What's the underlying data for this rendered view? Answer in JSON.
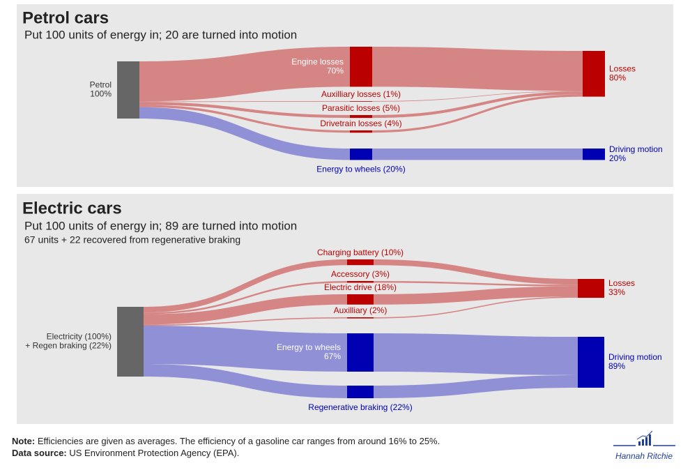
{
  "chart_data": [
    {
      "type": "sankey",
      "title": "Petrol cars",
      "subtitle": "Put 100 units of energy in; 20 are turned into motion",
      "nodes": [
        {
          "label": [
            "Petrol",
            "100%"
          ],
          "color": "#666666"
        },
        {
          "label": [
            "Engine losses",
            "70%"
          ],
          "color": "#bb0000"
        },
        {
          "label": [
            "Auxilliary losses (1%)"
          ],
          "color": "#bb0000"
        },
        {
          "label": [
            "Parasitic losses (5%)"
          ],
          "color": "#bb0000"
        },
        {
          "label": [
            "Drivetrain losses (4%)"
          ],
          "color": "#bb0000"
        },
        {
          "label": [
            "Energy to wheels (20%)"
          ],
          "color": "#0000b3"
        },
        {
          "label": [
            "Losses",
            "80%"
          ],
          "color": "#bb0000"
        },
        {
          "label": [
            "Driving motion",
            "20%"
          ],
          "color": "#0000b3"
        }
      ],
      "links": [
        {
          "source": 0,
          "target": 1,
          "value": 70,
          "color": "#d27373"
        },
        {
          "source": 0,
          "target": 2,
          "value": 1,
          "color": "#d27373"
        },
        {
          "source": 0,
          "target": 3,
          "value": 5,
          "color": "#d27373"
        },
        {
          "source": 0,
          "target": 4,
          "value": 4,
          "color": "#d27373"
        },
        {
          "source": 0,
          "target": 5,
          "value": 20,
          "color": "#8080d2"
        },
        {
          "source": 1,
          "target": 6,
          "value": 70,
          "color": "#d27373"
        },
        {
          "source": 2,
          "target": 6,
          "value": 1,
          "color": "#d27373"
        },
        {
          "source": 3,
          "target": 6,
          "value": 5,
          "color": "#d27373"
        },
        {
          "source": 4,
          "target": 6,
          "value": 4,
          "color": "#d27373"
        },
        {
          "source": 5,
          "target": 7,
          "value": 20,
          "color": "#8080d2"
        }
      ]
    },
    {
      "type": "sankey",
      "title": "Electric cars",
      "subtitle": "Put 100 units of energy in; 89 are turned into motion",
      "note": "67 units + 22 recovered from regenerative braking",
      "nodes": [
        {
          "label": [
            "Electricity (100%)",
            "+ Regen braking (22%)"
          ],
          "color": "#666666"
        },
        {
          "label": [
            "Charging battery (10%)"
          ],
          "color": "#bb0000"
        },
        {
          "label": [
            "Accessory (3%)"
          ],
          "color": "#bb0000"
        },
        {
          "label": [
            "Electric drive (18%)"
          ],
          "color": "#bb0000"
        },
        {
          "label": [
            "Auxilliary (2%)"
          ],
          "color": "#bb0000"
        },
        {
          "label": [
            "Energy to wheels",
            "67%"
          ],
          "color": "#0000b3"
        },
        {
          "label": [
            "Regenerative braking (22%)"
          ],
          "color": "#0000b3"
        },
        {
          "label": [
            "Losses",
            "33%"
          ],
          "color": "#bb0000"
        },
        {
          "label": [
            "Driving motion",
            "89%"
          ],
          "color": "#0000b3"
        }
      ],
      "links": [
        {
          "source": 0,
          "target": 1,
          "value": 10,
          "color": "#d27373"
        },
        {
          "source": 0,
          "target": 2,
          "value": 3,
          "color": "#d27373"
        },
        {
          "source": 0,
          "target": 3,
          "value": 18,
          "color": "#d27373"
        },
        {
          "source": 0,
          "target": 4,
          "value": 2,
          "color": "#d27373"
        },
        {
          "source": 0,
          "target": 5,
          "value": 67,
          "color": "#8080d2"
        },
        {
          "source": 0,
          "target": 6,
          "value": 22,
          "color": "#8080d2"
        },
        {
          "source": 1,
          "target": 7,
          "value": 10,
          "color": "#d27373"
        },
        {
          "source": 2,
          "target": 7,
          "value": 3,
          "color": "#d27373"
        },
        {
          "source": 3,
          "target": 7,
          "value": 18,
          "color": "#d27373"
        },
        {
          "source": 4,
          "target": 7,
          "value": 2,
          "color": "#d27373"
        },
        {
          "source": 5,
          "target": 8,
          "value": 67,
          "color": "#8080d2"
        },
        {
          "source": 6,
          "target": 8,
          "value": 22,
          "color": "#8080d2"
        }
      ]
    }
  ],
  "footer": {
    "note_label": "Note:",
    "note": "Efficiencies are given as averages. The efficiency of a gasoline car ranges from around 16% to 25%.",
    "source_label": "Data source:",
    "source": "US Environment Protection Agency (EPA)."
  },
  "credit": "Hannah Ritchie"
}
